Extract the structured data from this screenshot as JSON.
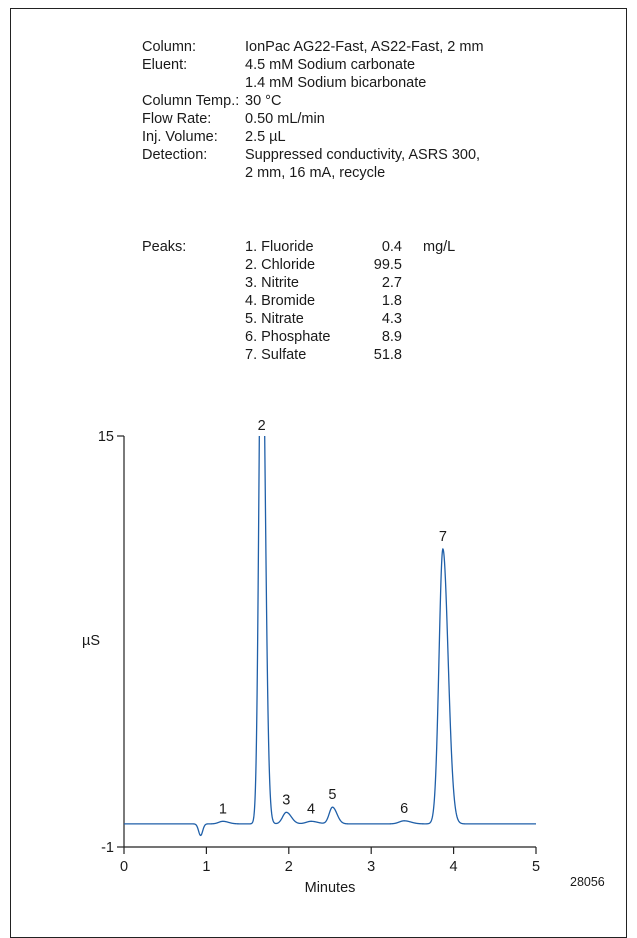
{
  "conditions": [
    {
      "label": "Column:",
      "value": "IonPac AG22-Fast, AS22-Fast, 2 mm"
    },
    {
      "label": "Eluent:",
      "value": "4.5 mM Sodium carbonate"
    },
    {
      "label": "",
      "value": "1.4 mM Sodium bicarbonate"
    },
    {
      "label": "Column Temp.:",
      "value": "30 °C"
    },
    {
      "label": "Flow Rate:",
      "value": "0.50 mL/min"
    },
    {
      "label": "Inj. Volume:",
      "value": "2.5 µL"
    },
    {
      "label": "Detection:",
      "value": "Suppressed conductivity, ASRS 300,"
    },
    {
      "label": "",
      "value": "2 mm, 16 mA, recycle"
    }
  ],
  "peaks_label": "Peaks:",
  "peaks_unit": "mg/L",
  "peaks": [
    {
      "name": "1. Fluoride",
      "conc": "0.4"
    },
    {
      "name": "2. Chloride",
      "conc": "99.5"
    },
    {
      "name": "3. Nitrite",
      "conc": "2.7"
    },
    {
      "name": "4. Bromide",
      "conc": "1.8"
    },
    {
      "name": "5. Nitrate",
      "conc": "4.3"
    },
    {
      "name": "6. Phosphate",
      "conc": "8.9"
    },
    {
      "name": "7. Sulfate",
      "conc": "51.8"
    }
  ],
  "figure_id": "28056",
  "chart_data": {
    "type": "line",
    "xlabel": "Minutes",
    "ylabel": "µS",
    "xlim": [
      0,
      5
    ],
    "ylim": [
      -1,
      15
    ],
    "x_ticks": [
      "0",
      "1",
      "2",
      "3",
      "4",
      "5"
    ],
    "y_ticks": [
      "15",
      "-1"
    ],
    "grid": false,
    "line_color": "#1f5fa8",
    "baseline": -0.1,
    "peaks": [
      {
        "label": "1",
        "rt": 1.2,
        "height": 0.1,
        "width": 0.05
      },
      {
        "label": "2",
        "rt": 1.67,
        "height": 22.0,
        "width": 0.032
      },
      {
        "label": "3",
        "rt": 1.97,
        "height": 0.45,
        "width": 0.045
      },
      {
        "label": "4",
        "rt": 2.27,
        "height": 0.1,
        "width": 0.06
      },
      {
        "label": "5",
        "rt": 2.53,
        "height": 0.65,
        "width": 0.04
      },
      {
        "label": "6",
        "rt": 3.4,
        "height": 0.12,
        "width": 0.06
      },
      {
        "label": "7",
        "rt": 3.87,
        "height": 10.7,
        "width": 0.047
      }
    ],
    "dip": {
      "rt": 0.93,
      "depth": 0.45,
      "width": 0.025
    }
  }
}
